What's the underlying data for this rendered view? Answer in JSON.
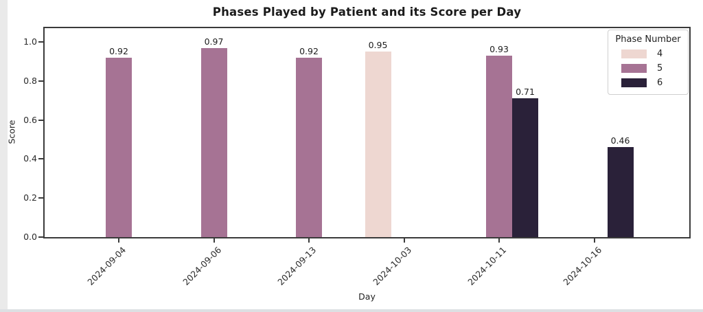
{
  "chart_data": {
    "type": "bar",
    "title": "Phases Played by Patient and its Score per Day",
    "xlabel": "Day",
    "ylabel": "Score",
    "categories": [
      "2024-09-04",
      "2024-09-06",
      "2024-09-13",
      "2024-10-03",
      "2024-10-11",
      "2024-10-16"
    ],
    "series": [
      {
        "name": "4",
        "color": "#eed7d1",
        "values": [
          null,
          null,
          null,
          0.95,
          null,
          null
        ]
      },
      {
        "name": "5",
        "color": "#a67394",
        "values": [
          0.92,
          0.97,
          0.92,
          null,
          0.93,
          null
        ]
      },
      {
        "name": "6",
        "color": "#2a2139",
        "values": [
          null,
          null,
          null,
          null,
          0.71,
          0.46
        ]
      }
    ],
    "bar_value_labels": [
      "0.92",
      "0.97",
      "0.92",
      "0.95",
      "0.93",
      "0.71",
      "0.46"
    ],
    "legend": {
      "title": "Phase Number",
      "entries": [
        "4",
        "5",
        "6"
      ],
      "position": "upper right"
    },
    "yticks": [
      0.0,
      0.2,
      0.4,
      0.6,
      0.8,
      1.0
    ],
    "ylim": [
      0.0,
      1.08
    ],
    "grid": false,
    "xtick_rotation": 45,
    "axis_color": "#3a3a3a"
  }
}
